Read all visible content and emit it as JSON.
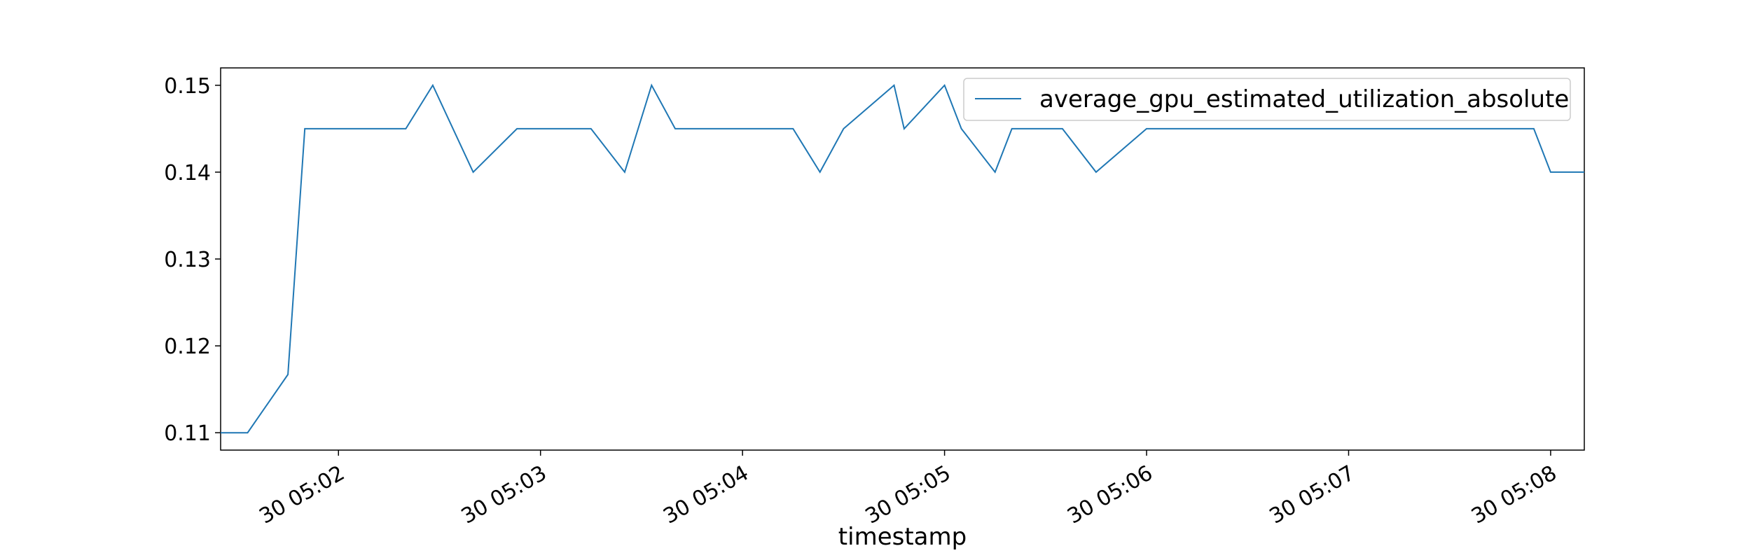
{
  "chart_data": {
    "type": "line",
    "title": "",
    "xlabel": "timestamp",
    "ylabel": "",
    "grid": false,
    "legend_position": "top-right",
    "colors": {
      "line": "#1f77b4"
    },
    "xlim": [
      "05:01:25",
      "05:08:10"
    ],
    "ylim": [
      0.108,
      0.152
    ],
    "x_ticks": [
      {
        "t": "05:02:00",
        "label": "30 05:02"
      },
      {
        "t": "05:03:00",
        "label": "30 05:03"
      },
      {
        "t": "05:04:00",
        "label": "30 05:04"
      },
      {
        "t": "05:05:00",
        "label": "30 05:05"
      },
      {
        "t": "05:06:00",
        "label": "30 05:06"
      },
      {
        "t": "05:07:00",
        "label": "30 05:07"
      },
      {
        "t": "05:08:00",
        "label": "30 05:08"
      }
    ],
    "y_ticks": [
      {
        "v": 0.11,
        "label": "0.11"
      },
      {
        "v": 0.12,
        "label": "0.12"
      },
      {
        "v": 0.13,
        "label": "0.13"
      },
      {
        "v": 0.14,
        "label": "0.14"
      },
      {
        "v": 0.15,
        "label": "0.15"
      }
    ],
    "series": [
      {
        "name": "average_gpu_estimated_utilization_absolute",
        "x": [
          "05:01:25",
          "05:01:33",
          "05:01:45",
          "05:01:50",
          "05:02:00",
          "05:02:20",
          "05:02:28",
          "05:02:40",
          "05:02:53",
          "05:03:05",
          "05:03:15",
          "05:03:25",
          "05:03:33",
          "05:03:40",
          "05:03:50",
          "05:04:00",
          "05:04:15",
          "05:04:23",
          "05:04:30",
          "05:04:45",
          "05:04:48",
          "05:05:00",
          "05:05:05",
          "05:05:15",
          "05:05:20",
          "05:05:30",
          "05:05:35",
          "05:05:45",
          "05:06:00",
          "05:06:20",
          "05:06:40",
          "05:07:00",
          "05:07:20",
          "05:07:40",
          "05:07:55",
          "05:08:00",
          "05:08:10"
        ],
        "values": [
          0.11,
          0.11,
          0.1167,
          0.145,
          0.145,
          0.145,
          0.15,
          0.14,
          0.145,
          0.145,
          0.145,
          0.14,
          0.15,
          0.145,
          0.145,
          0.145,
          0.145,
          0.14,
          0.145,
          0.15,
          0.145,
          0.15,
          0.145,
          0.14,
          0.145,
          0.145,
          0.145,
          0.14,
          0.145,
          0.145,
          0.145,
          0.145,
          0.145,
          0.145,
          0.145,
          0.14,
          0.14
        ]
      }
    ]
  }
}
